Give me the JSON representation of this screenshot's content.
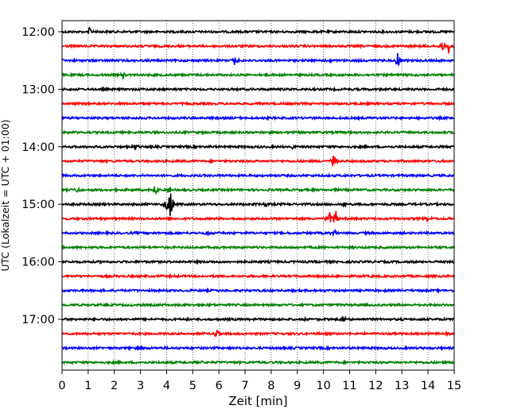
{
  "chart_data": {
    "type": "line",
    "title": "",
    "xlabel": "Zeit  [min]",
    "ylabel": "UTC (Lokalzeit = UTC + 01:00)",
    "xlim": [
      0,
      15
    ],
    "x_ticks": [
      "0",
      "1",
      "2",
      "3",
      "4",
      "5",
      "6",
      "7",
      "8",
      "9",
      "10",
      "11",
      "12",
      "13",
      "14",
      "15"
    ],
    "y_tick_labels": [
      "12:00",
      "13:00",
      "14:00",
      "15:00",
      "16:00",
      "17:00"
    ],
    "grid": "vertical dotted",
    "line_colors": [
      "#000000",
      "#ff0000",
      "#0000ff",
      "#008000"
    ],
    "traces": [
      {
        "start": "12:00",
        "color": "#000000",
        "events": [
          {
            "t": 1.05,
            "amp": 6
          }
        ]
      },
      {
        "start": "12:15",
        "color": "#ff0000",
        "events": [
          {
            "t": 14.55,
            "amp": 7
          },
          {
            "t": 14.8,
            "amp": 10
          }
        ]
      },
      {
        "start": "12:30",
        "color": "#0000ff",
        "events": [
          {
            "t": 6.6,
            "amp": 5
          },
          {
            "t": 10.3,
            "amp": 5
          },
          {
            "t": 12.85,
            "amp": 10
          }
        ]
      },
      {
        "start": "12:45",
        "color": "#008000",
        "events": [
          {
            "t": 2.35,
            "amp": 4
          }
        ]
      },
      {
        "start": "13:00",
        "color": "#000000",
        "events": []
      },
      {
        "start": "13:15",
        "color": "#ff0000",
        "events": []
      },
      {
        "start": "13:30",
        "color": "#0000ff",
        "events": []
      },
      {
        "start": "13:45",
        "color": "#008000",
        "events": []
      },
      {
        "start": "14:00",
        "color": "#000000",
        "events": [
          {
            "t": 2.8,
            "amp": 3
          },
          {
            "t": 8.8,
            "amp": 3
          }
        ]
      },
      {
        "start": "14:15",
        "color": "#ff0000",
        "events": [
          {
            "t": 10.4,
            "amp": 11
          }
        ]
      },
      {
        "start": "14:30",
        "color": "#0000ff",
        "events": []
      },
      {
        "start": "14:45",
        "color": "#008000",
        "events": [
          {
            "t": 0.6,
            "amp": 5
          },
          {
            "t": 3.55,
            "amp": 12
          },
          {
            "t": 4.1,
            "amp": 5
          }
        ]
      },
      {
        "start": "15:00",
        "color": "#000000",
        "events": [
          {
            "t": 4.0,
            "amp": 9
          },
          {
            "t": 4.15,
            "amp": 28
          },
          {
            "t": 7.8,
            "amp": 4
          },
          {
            "t": 10.8,
            "amp": 4
          }
        ]
      },
      {
        "start": "15:15",
        "color": "#ff0000",
        "events": [
          {
            "t": 10.25,
            "amp": 9
          },
          {
            "t": 10.45,
            "amp": 13
          },
          {
            "t": 14.0,
            "amp": 3
          }
        ]
      },
      {
        "start": "15:30",
        "color": "#0000ff",
        "events": [
          {
            "t": 5.6,
            "amp": 4
          },
          {
            "t": 10.45,
            "amp": 6
          }
        ]
      },
      {
        "start": "15:45",
        "color": "#008000",
        "events": []
      },
      {
        "start": "16:00",
        "color": "#000000",
        "events": []
      },
      {
        "start": "16:15",
        "color": "#ff0000",
        "events": []
      },
      {
        "start": "16:30",
        "color": "#0000ff",
        "events": []
      },
      {
        "start": "16:45",
        "color": "#008000",
        "events": []
      },
      {
        "start": "17:00",
        "color": "#000000",
        "events": [
          {
            "t": 9.3,
            "amp": 3
          },
          {
            "t": 10.75,
            "amp": 4
          }
        ]
      },
      {
        "start": "17:15",
        "color": "#ff0000",
        "events": [
          {
            "t": 5.9,
            "amp": 7
          }
        ]
      },
      {
        "start": "17:30",
        "color": "#0000ff",
        "events": [
          {
            "t": 2.9,
            "amp": 3
          }
        ]
      },
      {
        "start": "17:45",
        "color": "#008000",
        "events": [
          {
            "t": 5.4,
            "amp": 3
          }
        ]
      }
    ]
  }
}
